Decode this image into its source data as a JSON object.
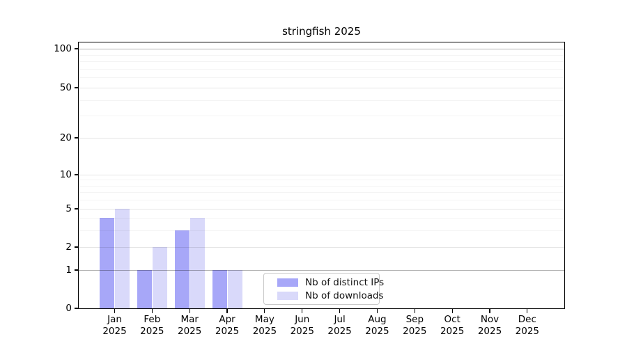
{
  "title": "stringfish 2025",
  "chart_data": {
    "type": "bar",
    "title": "stringfish 2025",
    "xlabel": "",
    "ylabel": "",
    "y_scale": "log-with-zero",
    "ylim": [
      0,
      100
    ],
    "grid": true,
    "legend_position": "bottom-center-inside",
    "categories": [
      "Jan",
      "Feb",
      "Mar",
      "Apr",
      "May",
      "Jun",
      "Jul",
      "Aug",
      "Sep",
      "Oct",
      "Nov",
      "Dec"
    ],
    "year_label": "2025",
    "series": [
      {
        "name": "Nb of distinct IPs",
        "color": "#a7a7f8",
        "values": [
          4,
          1,
          3,
          1,
          0,
          0,
          0,
          0,
          0,
          0,
          0,
          0
        ]
      },
      {
        "name": "Nb of downloads",
        "color": "#d9d9fa",
        "values": [
          5,
          2,
          4,
          1,
          0,
          0,
          0,
          0,
          0,
          0,
          0,
          0
        ]
      }
    ],
    "y_ticks": [
      0,
      1,
      2,
      5,
      10,
      20,
      50,
      100
    ],
    "y_tick_labels": [
      "0",
      "1",
      "2",
      "5",
      "10",
      "20",
      "50",
      "100"
    ],
    "y_minor_ticks": [
      3,
      4,
      6,
      7,
      8,
      9,
      30,
      40,
      60,
      70,
      80,
      90
    ],
    "emphasized_gridlines": [
      1,
      100
    ],
    "colors": {
      "major_grid": "rgba(0,0,0,0.10)",
      "minor_grid": "rgba(0,0,0,0.045)",
      "emphasized_grid": "rgba(0,0,0,0.30)",
      "frame": "#000000",
      "background": "#ffffff"
    }
  }
}
